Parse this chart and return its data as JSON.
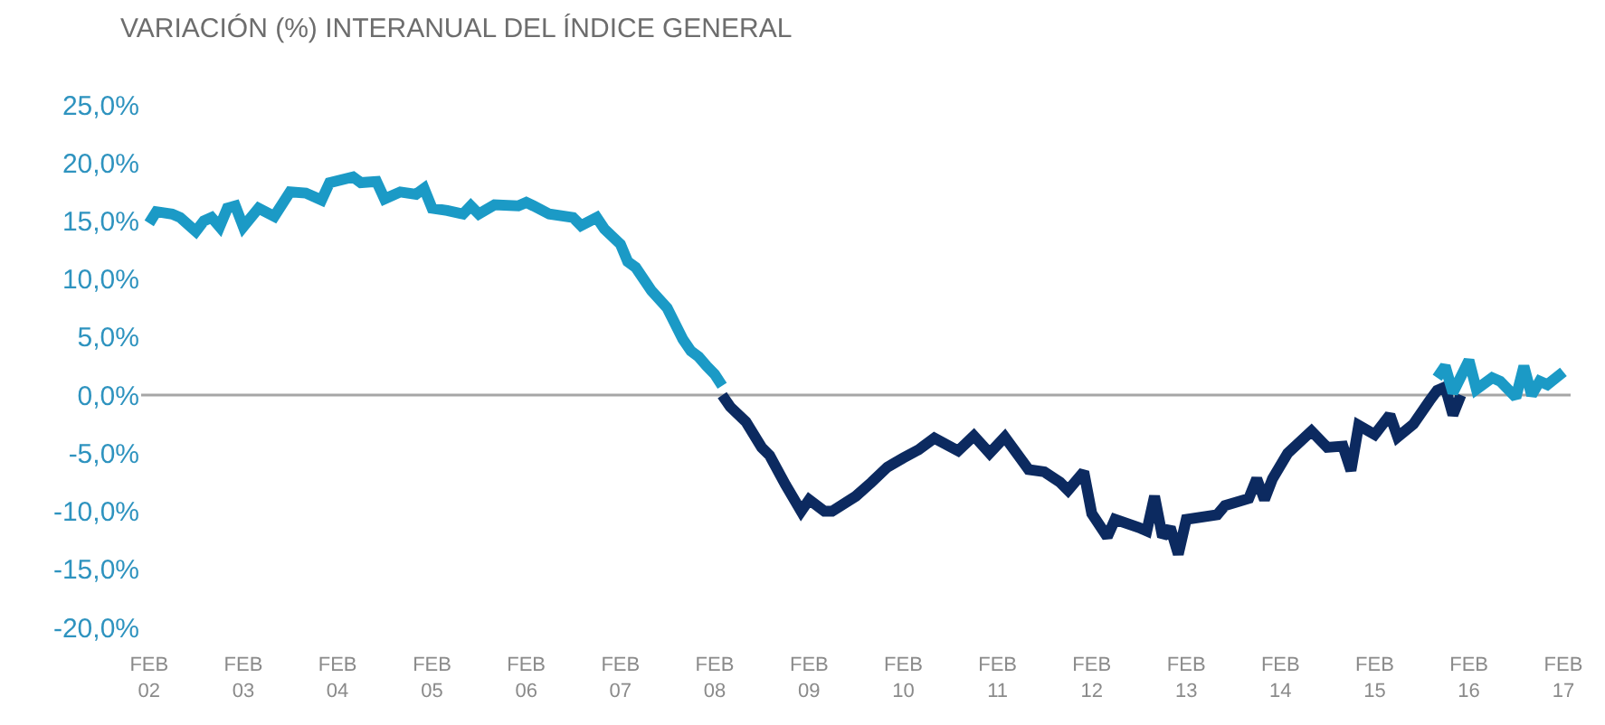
{
  "chart_data": {
    "type": "line",
    "title": "VARIACIÓN (%) INTERANUAL DEL ÍNDICE GENERAL",
    "series": [
      {
        "color": "#1b9ac6",
        "x": [
          "2002-02",
          "2002-03",
          "2002-05",
          "2002-06",
          "2002-08",
          "2002-09",
          "2002-10",
          "2002-11",
          "2002-12",
          "2003-01",
          "2003-02",
          "2003-04",
          "2003-06",
          "2003-08",
          "2003-10",
          "2003-12",
          "2004-01",
          "2004-04",
          "2004-05",
          "2004-07",
          "2004-08",
          "2004-10",
          "2004-12",
          "2005-01",
          "2005-02",
          "2005-04",
          "2005-06",
          "2005-07",
          "2005-08",
          "2005-10",
          "2006-01",
          "2006-02",
          "2006-03",
          "2006-05",
          "2006-08",
          "2006-09",
          "2006-11",
          "2006-12",
          "2007-02",
          "2007-03",
          "2007-04",
          "2007-06",
          "2007-08",
          "2007-10",
          "2007-11",
          "2007-12",
          "2008-01",
          "2008-02",
          "2008-03"
        ],
        "values": [
          14.8,
          15.8,
          15.6,
          15.3,
          14.1,
          15.0,
          15.3,
          14.5,
          16.1,
          16.3,
          14.5,
          16.1,
          15.4,
          17.5,
          17.4,
          16.8,
          18.3,
          18.8,
          18.3,
          18.4,
          16.9,
          17.5,
          17.3,
          17.8,
          16.1,
          15.9,
          15.6,
          16.3,
          15.6,
          16.4,
          16.3,
          16.6,
          16.3,
          15.6,
          15.3,
          14.6,
          15.3,
          14.3,
          13.0,
          11.5,
          11.0,
          9.0,
          7.5,
          4.8,
          3.8,
          3.3,
          2.5,
          1.8,
          0.8
        ]
      },
      {
        "color": "#0c2a60",
        "x": [
          "2008-03",
          "2008-04",
          "2008-06",
          "2008-08",
          "2008-09",
          "2008-11",
          "2009-01",
          "2009-02",
          "2009-04",
          "2009-05",
          "2009-08",
          "2009-10",
          "2009-12",
          "2010-02",
          "2010-04",
          "2010-06",
          "2010-09",
          "2010-11",
          "2011-01",
          "2011-03",
          "2011-06",
          "2011-08",
          "2011-10",
          "2011-11",
          "2012-01",
          "2012-02",
          "2012-04",
          "2012-05",
          "2012-08",
          "2012-09",
          "2012-10",
          "2012-11",
          "2012-12",
          "2013-01",
          "2013-02",
          "2013-06",
          "2013-07",
          "2013-10",
          "2013-11",
          "2013-12",
          "2014-01",
          "2014-03",
          "2014-06",
          "2014-08",
          "2014-10",
          "2014-11",
          "2014-12",
          "2015-02",
          "2015-04",
          "2015-05",
          "2015-07",
          "2015-09",
          "2015-10",
          "2015-11",
          "2015-12",
          "2016-01"
        ],
        "values": [
          0.0,
          -1.0,
          -2.3,
          -4.5,
          -5.2,
          -7.7,
          -10.0,
          -9.0,
          -10.0,
          -10.0,
          -8.7,
          -7.5,
          -6.2,
          -5.4,
          -4.7,
          -3.7,
          -4.8,
          -3.5,
          -5.0,
          -3.6,
          -6.4,
          -6.6,
          -7.5,
          -8.2,
          -6.6,
          -10.2,
          -12.2,
          -10.7,
          -11.4,
          -11.7,
          -8.7,
          -12.2,
          -11.4,
          -13.7,
          -10.7,
          -10.3,
          -9.5,
          -8.9,
          -7.2,
          -9.0,
          -7.2,
          -5.0,
          -3.1,
          -4.5,
          -4.4,
          -6.5,
          -2.6,
          -3.4,
          -1.7,
          -3.6,
          -2.5,
          -0.5,
          0.4,
          0.7,
          -1.7,
          0.0
        ]
      },
      {
        "color": "#1b9ac6",
        "x": [
          "2015-10",
          "2015-11",
          "2015-12",
          "2016-02",
          "2016-03",
          "2016-05",
          "2016-06",
          "2016-08",
          "2016-09",
          "2016-10",
          "2016-11",
          "2016-12",
          "2017-02"
        ],
        "values": [
          1.5,
          2.5,
          0.2,
          3.0,
          0.5,
          1.5,
          1.2,
          -0.2,
          2.5,
          0.0,
          1.2,
          0.9,
          2.0
        ]
      }
    ],
    "xlim": [
      "2002-01",
      "2017-03"
    ],
    "xticks": [
      {
        "value": "2002-02",
        "label": "FEB\n02"
      },
      {
        "value": "2003-02",
        "label": "FEB\n03"
      },
      {
        "value": "2004-02",
        "label": "FEB\n04"
      },
      {
        "value": "2005-02",
        "label": "FEB\n05"
      },
      {
        "value": "2006-02",
        "label": "FEB\n06"
      },
      {
        "value": "2007-02",
        "label": "FEB\n07"
      },
      {
        "value": "2008-02",
        "label": "FEB\n08"
      },
      {
        "value": "2009-02",
        "label": "FEB\n09"
      },
      {
        "value": "2010-02",
        "label": "FEB\n10"
      },
      {
        "value": "2011-02",
        "label": "FEB\n11"
      },
      {
        "value": "2012-02",
        "label": "FEB\n12"
      },
      {
        "value": "2013-02",
        "label": "FEB\n13"
      },
      {
        "value": "2014-02",
        "label": "FEB\n14"
      },
      {
        "value": "2015-02",
        "label": "FEB\n15"
      },
      {
        "value": "2016-02",
        "label": "FEB\n16"
      },
      {
        "value": "2017-02",
        "label": "FEB\n17"
      }
    ],
    "ylim": [
      -20,
      25
    ],
    "yticks": [
      {
        "value": -20,
        "label": "-20,0%"
      },
      {
        "value": -15,
        "label": "-15,0%"
      },
      {
        "value": -10,
        "label": "-10,0%"
      },
      {
        "value": -5,
        "label": "-5,0%"
      },
      {
        "value": 0,
        "label": "0,0%"
      },
      {
        "value": 5,
        "label": "5,0%"
      },
      {
        "value": 10,
        "label": "10,0%"
      },
      {
        "value": 15,
        "label": "15,0%"
      },
      {
        "value": 20,
        "label": "20,0%"
      },
      {
        "value": 25,
        "label": "25,0%"
      }
    ],
    "ref_lines": [
      {
        "axis": "y",
        "value": 0,
        "color": "#a6a6a6"
      }
    ],
    "grid": false,
    "marker": "none",
    "line_style": "solid"
  }
}
